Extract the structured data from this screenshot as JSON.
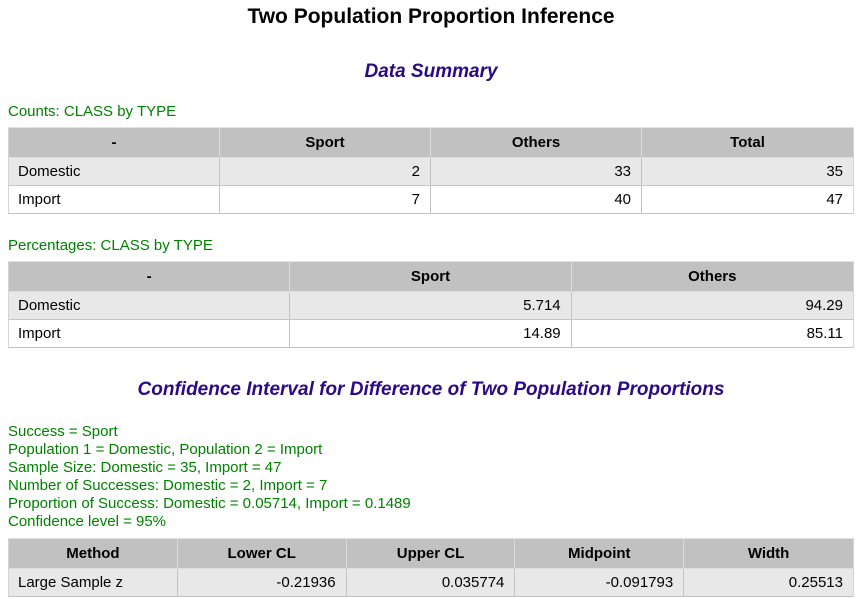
{
  "page": {
    "title": "Two Population Proportion Inference"
  },
  "colors": {
    "section_heading": "#2a0a86",
    "label_green": "#008200",
    "table_header_bg": "#c1c1c1",
    "table_row_alt_bg": "#e8e8e8",
    "table_row_bg": "#ffffff"
  },
  "data_summary": {
    "heading": "Data Summary",
    "counts_table": {
      "label": "Counts: CLASS by TYPE",
      "columns": [
        "-",
        "Sport",
        "Others",
        "Total"
      ],
      "rows": [
        {
          "name": "Domestic",
          "values": [
            "2",
            "33",
            "35"
          ]
        },
        {
          "name": "Import",
          "values": [
            "7",
            "40",
            "47"
          ]
        }
      ]
    },
    "percentages_table": {
      "label": "Percentages: CLASS by TYPE",
      "columns": [
        "-",
        "Sport",
        "Others"
      ],
      "rows": [
        {
          "name": "Domestic",
          "values": [
            "5.714",
            "94.29"
          ]
        },
        {
          "name": "Import",
          "values": [
            "14.89",
            "85.11"
          ]
        }
      ]
    }
  },
  "confidence_interval": {
    "heading": "Confidence Interval for Difference of Two Population Proportions",
    "details": [
      "Success = Sport",
      "Population 1 = Domestic, Population 2 = Import",
      "Sample Size: Domestic = 35, Import = 47",
      "Number of Successes: Domestic = 2, Import = 7",
      "Proportion of Success: Domestic = 0.05714, Import = 0.1489",
      "Confidence level = 95%"
    ],
    "results_table": {
      "columns": [
        "Method",
        "Lower CL",
        "Upper CL",
        "Midpoint",
        "Width"
      ],
      "rows": [
        {
          "name": "Large Sample z",
          "values": [
            "-0.21936",
            "0.035774",
            "-0.091793",
            "0.25513"
          ]
        }
      ]
    }
  }
}
